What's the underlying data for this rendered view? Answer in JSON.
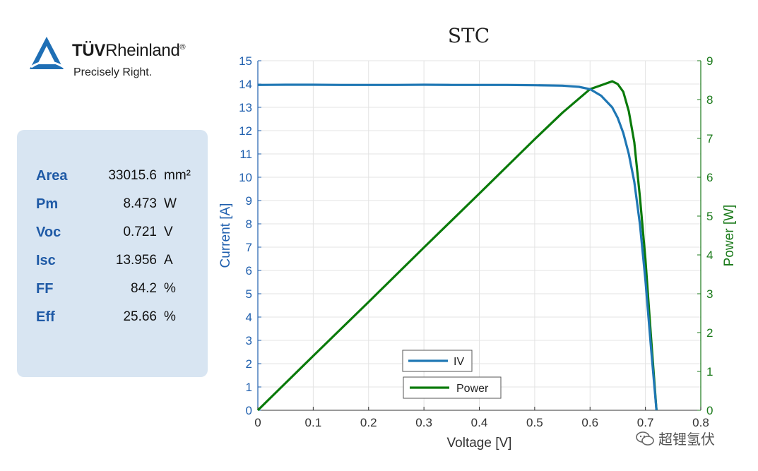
{
  "logo": {
    "brand_bold": "TÜV",
    "brand_rest": "Rheinland",
    "registered": "®",
    "tagline": "Precisely Right."
  },
  "stats": [
    {
      "label": "Area",
      "value": "33015.6",
      "unit": "mm²"
    },
    {
      "label": "Pm",
      "value": "8.473",
      "unit": "W"
    },
    {
      "label": "Voc",
      "value": "0.721",
      "unit": "V"
    },
    {
      "label": "Isc",
      "value": "13.956",
      "unit": "A"
    },
    {
      "label": "FF",
      "value": "84.2",
      "unit": "%"
    },
    {
      "label": "Eff",
      "value": "25.66",
      "unit": "%"
    }
  ],
  "watermark": "超锂氢伏",
  "colors": {
    "current": "#1f5fae",
    "power": "#1a7a1a",
    "iv_line": "#1f77b4",
    "power_line": "#0a7a0a",
    "panel": "#d8e5f2"
  },
  "chart_data": {
    "type": "line",
    "title": "STC",
    "xlabel": "Voltage [V]",
    "ylabel_left": "Current [A]",
    "ylabel_right": "Power [W]",
    "xlim": [
      0,
      0.8
    ],
    "ylim_left": [
      0,
      15
    ],
    "ylim_right": [
      0,
      9
    ],
    "x_ticks": [
      "0",
      "0.1",
      "0.2",
      "0.3",
      "0.4",
      "0.5",
      "0.6",
      "0.7",
      "0.8"
    ],
    "y_ticks_left": [
      "0",
      "1",
      "2",
      "3",
      "4",
      "5",
      "6",
      "7",
      "8",
      "9",
      "10",
      "11",
      "12",
      "13",
      "14",
      "15"
    ],
    "y_ticks_right": [
      "0",
      "1",
      "2",
      "3",
      "4",
      "5",
      "6",
      "7",
      "8",
      "9"
    ],
    "grid": true,
    "legend": "bottom-center",
    "series": [
      {
        "name": "IV",
        "axis": "left",
        "x": [
          0,
          0.05,
          0.1,
          0.15,
          0.2,
          0.25,
          0.3,
          0.35,
          0.4,
          0.45,
          0.5,
          0.55,
          0.58,
          0.6,
          0.62,
          0.64,
          0.65,
          0.66,
          0.67,
          0.68,
          0.69,
          0.7,
          0.71,
          0.72
        ],
        "y": [
          13.96,
          13.97,
          13.97,
          13.96,
          13.96,
          13.96,
          13.97,
          13.96,
          13.96,
          13.96,
          13.95,
          13.93,
          13.88,
          13.78,
          13.5,
          13.0,
          12.55,
          11.9,
          11.0,
          9.8,
          8.0,
          5.6,
          2.7,
          0
        ]
      },
      {
        "name": "Power",
        "axis": "right",
        "x": [
          0,
          0.1,
          0.2,
          0.3,
          0.4,
          0.5,
          0.55,
          0.6,
          0.62,
          0.64,
          0.65,
          0.66,
          0.67,
          0.68,
          0.69,
          0.7,
          0.71,
          0.72
        ],
        "y": [
          0,
          1.4,
          2.79,
          4.19,
          5.58,
          6.98,
          7.66,
          8.27,
          8.37,
          8.47,
          8.4,
          8.2,
          7.7,
          6.9,
          5.5,
          3.9,
          1.9,
          0
        ]
      }
    ]
  }
}
